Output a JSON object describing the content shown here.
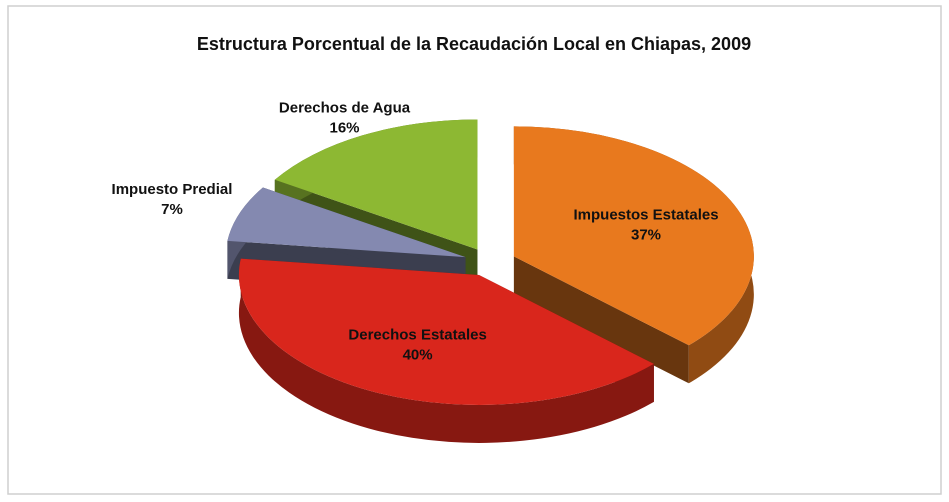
{
  "chart_data": {
    "type": "pie3d",
    "title": "Estructura Porcentual de la Recaudación Local en Chiapas, 2009",
    "categories": [
      "Impuestos Estatales",
      "Derechos Estatales",
      "Impuesto Predial",
      "Derechos de Agua"
    ],
    "values": [
      37,
      40,
      7,
      16
    ],
    "value_labels": [
      "37%",
      "40%",
      "7%",
      "16%"
    ],
    "colors": [
      "#e8791e",
      "#d9261c",
      "#8489b0",
      "#8db833"
    ]
  }
}
